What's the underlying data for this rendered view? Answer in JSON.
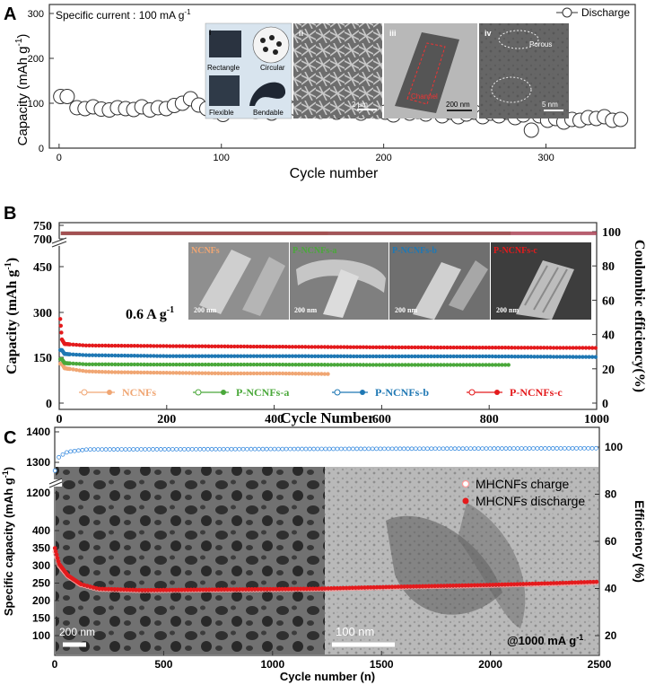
{
  "chart_data": [
    {
      "panel": "A",
      "type": "scatter",
      "annotation": "Specific current : 100 mA g",
      "annotation_sup": "-1",
      "xlabel": "Cycle number",
      "ylabel": "Capacity (mAh g",
      "ylabel_sup": "-1",
      "ylabel_end": ")",
      "xlim": [
        -6,
        355
      ],
      "ylim": [
        0,
        320
      ],
      "xticks": [
        "0",
        "100",
        "200",
        "300"
      ],
      "yticks": [
        "0",
        "100",
        "200",
        "300"
      ],
      "legend_position": "top-right",
      "series": [
        {
          "name": "Discharge",
          "marker": "open-circle",
          "x": [
            1,
            5,
            11,
            16,
            21,
            26,
            31,
            36,
            41,
            46,
            51,
            56,
            61,
            66,
            71,
            76,
            81,
            86,
            91,
            96,
            101,
            106,
            111,
            116,
            121,
            126,
            131,
            136,
            141,
            146,
            151,
            156,
            161,
            166,
            171,
            176,
            181,
            186,
            191,
            196,
            201,
            206,
            211,
            216,
            221,
            226,
            231,
            236,
            241,
            246,
            251,
            256,
            261,
            266,
            271,
            276,
            281,
            286,
            291,
            296,
            301,
            306,
            311,
            316,
            321,
            326,
            331,
            336,
            341,
            346
          ],
          "y": [
            115,
            115,
            90,
            88,
            92,
            87,
            85,
            90,
            88,
            86,
            92,
            85,
            90,
            88,
            95,
            100,
            110,
            96,
            88,
            82,
            75,
            88,
            84,
            86,
            82,
            90,
            78,
            85,
            92,
            88,
            84,
            86,
            82,
            88,
            80,
            83,
            90,
            78,
            86,
            82,
            80,
            74,
            84,
            78,
            82,
            76,
            84,
            72,
            80,
            70,
            76,
            80,
            70,
            78,
            72,
            80,
            68,
            74,
            40,
            72,
            62,
            66,
            58,
            64,
            62,
            68,
            66,
            70,
            62,
            64
          ]
        }
      ],
      "insets": [
        "i",
        "ii",
        "iii",
        "iv"
      ],
      "inset_labels": [
        "Rectangle",
        "Circular",
        "Flexible",
        "Bendable",
        "2 μm",
        "200 nm",
        "Channel",
        "Porous",
        "5 nm"
      ]
    },
    {
      "panel": "B",
      "type": "scatter",
      "annotation": "0.6 A g",
      "annotation_sup": "-1",
      "xlabel": "Cycle Number",
      "ylabel": "Capacity (mAh g",
      "ylabel_sup": "-1",
      "ylabel_end": ")",
      "y2label": "Coulombic efficiency(%)",
      "xlim": [
        0,
        1000
      ],
      "ylim": [
        -50,
        780
      ],
      "y_axis_break": [
        480,
        690
      ],
      "xticks": [
        "0",
        "200",
        "400",
        "600",
        "800",
        "1000"
      ],
      "yticks": [
        "0",
        "150",
        "300",
        "450",
        "700",
        "750"
      ],
      "y2ticks": [
        "0",
        "20",
        "40",
        "60",
        "80",
        "100"
      ],
      "y2lim": [
        -6,
        108
      ],
      "legend_position": "bottom",
      "series": [
        {
          "name": "NCNFs",
          "color": "#f0a673",
          "end_cycle": 500,
          "capacity": [
            [
              5,
              130
            ],
            [
              10,
              115
            ],
            [
              50,
              105
            ],
            [
              100,
              102
            ],
            [
              200,
              100
            ],
            [
              300,
              98
            ],
            [
              400,
              98
            ],
            [
              500,
              96
            ]
          ],
          "coulombic_efficiency": 99
        },
        {
          "name": "P-NCNFs-a",
          "color": "#4aa83a",
          "end_cycle": 840,
          "capacity": [
            [
              5,
              145
            ],
            [
              10,
              132
            ],
            [
              50,
              128
            ],
            [
              200,
              127
            ],
            [
              400,
              127
            ],
            [
              600,
              126
            ],
            [
              840,
              126
            ]
          ],
          "coulombic_efficiency": 99
        },
        {
          "name": "P-NCNFs-b",
          "color": "#1f78b4",
          "end_cycle": 1000,
          "capacity": [
            [
              5,
              175
            ],
            [
              10,
              162
            ],
            [
              50,
              158
            ],
            [
              200,
              155
            ],
            [
              400,
              155
            ],
            [
              600,
              154
            ],
            [
              800,
              154
            ],
            [
              1000,
              152
            ]
          ],
          "coulombic_efficiency": 99
        },
        {
          "name": "P-NCNFs-c",
          "color": "#e41a1c",
          "end_cycle": 1000,
          "capacity": [
            [
              1,
              300
            ],
            [
              5,
              210
            ],
            [
              10,
              195
            ],
            [
              50,
              190
            ],
            [
              200,
              188
            ],
            [
              400,
              186
            ],
            [
              600,
              184
            ],
            [
              800,
              183
            ],
            [
              1000,
              182
            ]
          ],
          "coulombic_efficiency": 99
        }
      ],
      "inset_labels": [
        "NCNFs",
        "P-NCNFs-a",
        "P-NCNFs-b",
        "P-NCNFs-c"
      ],
      "inset_scale": "200 nm"
    },
    {
      "panel": "C",
      "type": "scatter",
      "annotation": "@1000 mA g",
      "annotation_sup": "-1",
      "xlabel": "Cycle number (n)",
      "ylabel": "Specific capacity (mAh g",
      "ylabel_sup": "-1",
      "ylabel_end": ")",
      "y2label": "Efficiency (%)",
      "xlim": [
        0,
        2500
      ],
      "ylim": [
        100,
        1400
      ],
      "y_axis_break": [
        420,
        1180
      ],
      "xticks": [
        "0",
        "500",
        "1000",
        "1500",
        "2000",
        "2500"
      ],
      "yticks": [
        "100",
        "150",
        "200",
        "250",
        "300",
        "350",
        "400",
        "1200",
        "1300",
        "1400"
      ],
      "y2ticks": [
        "20",
        "40",
        "60",
        "80",
        "100"
      ],
      "y2lim": [
        4,
        110
      ],
      "legend_position": "top-right",
      "series": [
        {
          "name": "MHCNFs charge",
          "color": "#ff9a9a",
          "marker": "open-circle",
          "capacity": [
            [
              1,
              340
            ],
            [
              20,
              300
            ],
            [
              60,
              270
            ],
            [
              120,
              245
            ],
            [
              200,
              232
            ],
            [
              400,
              228
            ],
            [
              800,
              230
            ],
            [
              1200,
              232
            ],
            [
              1600,
              238
            ],
            [
              2000,
              243
            ],
            [
              2300,
              248
            ],
            [
              2500,
              252
            ]
          ]
        },
        {
          "name": "MHCNFs discharge",
          "color": "#e41a1c",
          "marker": "filled-circle",
          "capacity": [
            [
              1,
              350
            ],
            [
              20,
              305
            ],
            [
              60,
              272
            ],
            [
              120,
              247
            ],
            [
              200,
              234
            ],
            [
              400,
              230
            ],
            [
              800,
              232
            ],
            [
              1200,
              234
            ],
            [
              1600,
              240
            ],
            [
              2000,
              245
            ],
            [
              2300,
              250
            ],
            [
              2500,
              254
            ]
          ]
        },
        {
          "name": "efficiency",
          "color": "#3b8de0",
          "efficiency": [
            [
              1,
              90
            ],
            [
              20,
              96
            ],
            [
              60,
              98
            ],
            [
              150,
              99
            ],
            [
              2500,
              99.5
            ]
          ]
        }
      ],
      "inset_scales": [
        "200 nm",
        "100 nm"
      ]
    }
  ]
}
